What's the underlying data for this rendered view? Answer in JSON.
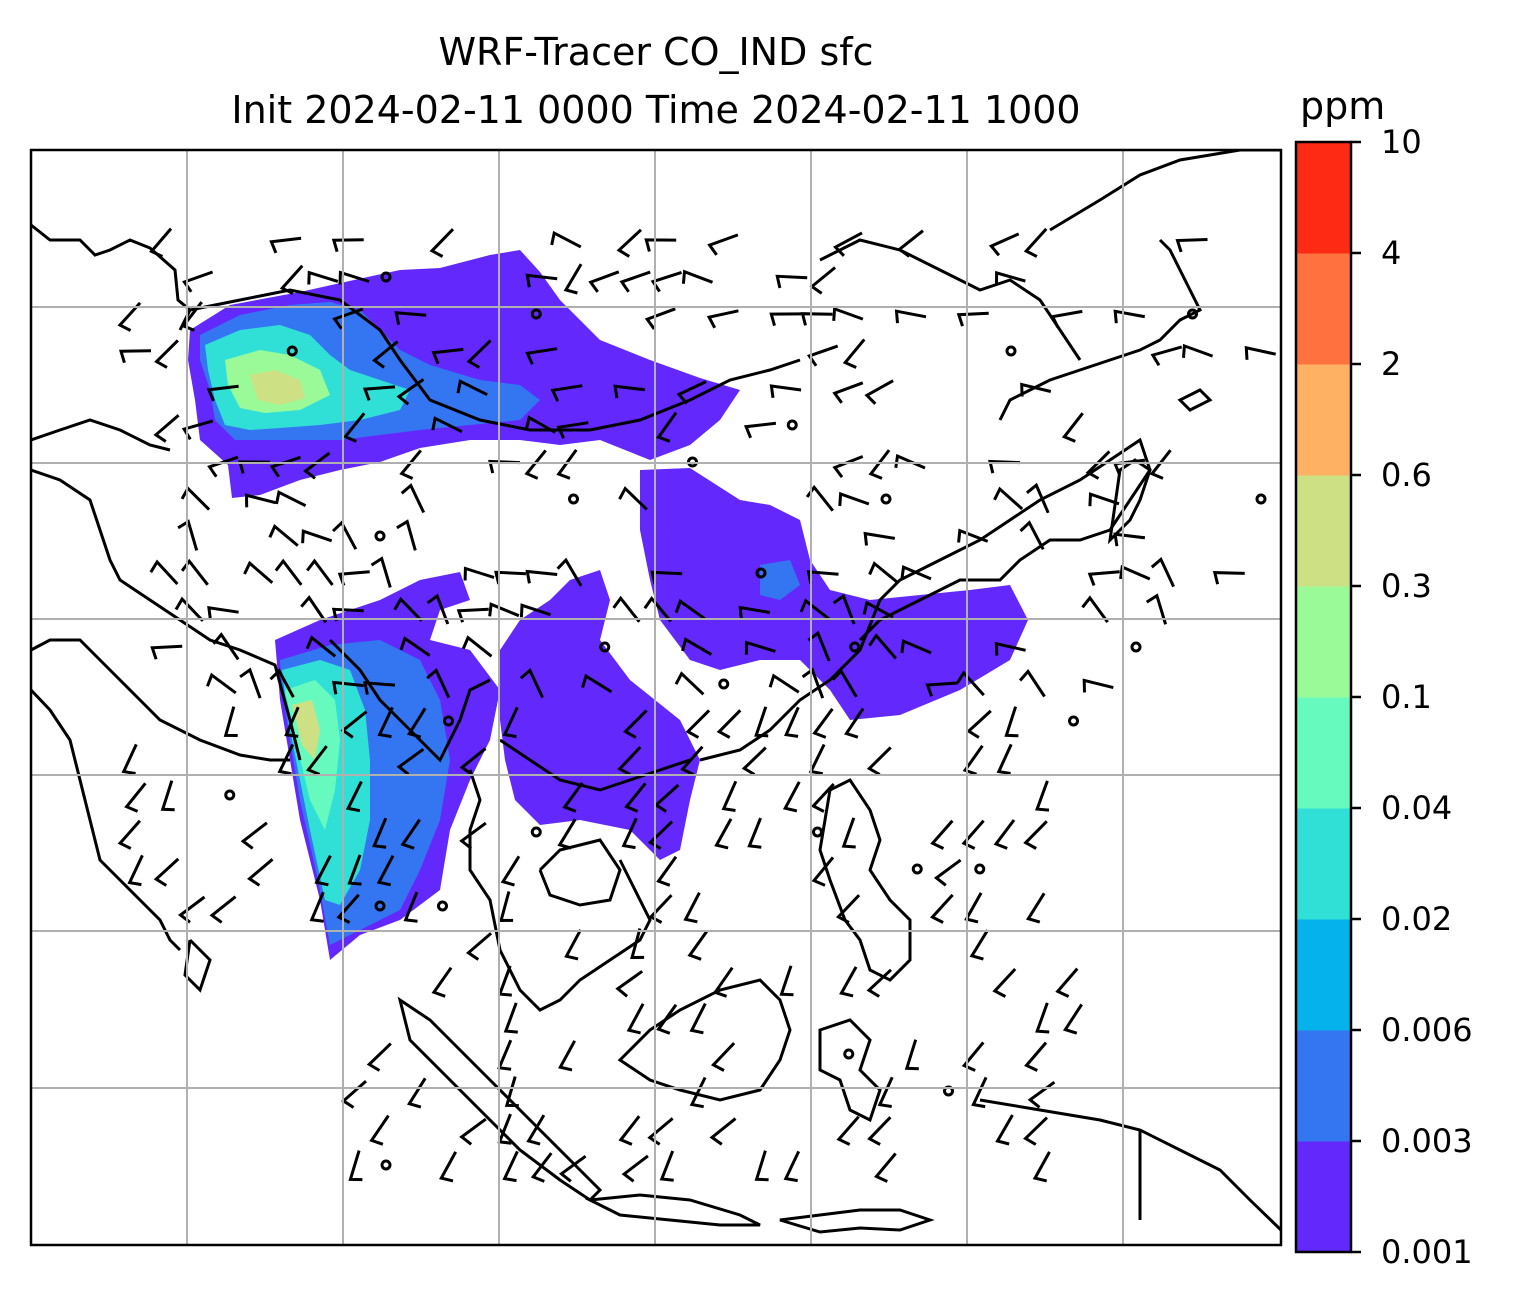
{
  "title_line1": "WRF-Tracer CO_IND sfc",
  "title_line2": "Init 2024-02-11 0000 Time 2024-02-11 1000",
  "colorbar": {
    "unit": "ppm",
    "levels": [
      "0.001",
      "0.003",
      "0.006",
      "0.02",
      "0.04",
      "0.1",
      "0.3",
      "0.6",
      "2",
      "4",
      "10"
    ],
    "colors": [
      "#6228fc",
      "#3476f2",
      "#05b2ec",
      "#30e0d6",
      "#67fabf",
      "#9bfa98",
      "#cde184",
      "#ffb163",
      "#ff7240",
      "#ff2a14"
    ]
  },
  "map": {
    "basemap_color": "#000000",
    "gridline_color": "#b0b0b0",
    "barb_color": "#000000"
  }
}
